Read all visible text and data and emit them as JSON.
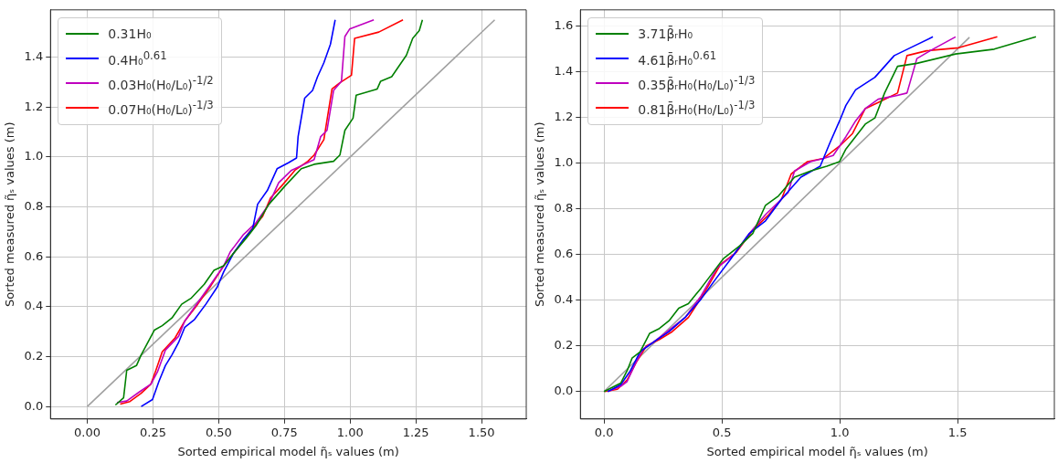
{
  "chart_data": [
    {
      "type": "line",
      "xlabel": "Sorted empirical model η̃ₛ values (m)",
      "ylabel": "Sorted measured η̃ₛ values (m)",
      "xlim": [
        -0.14,
        1.67
      ],
      "ylim": [
        -0.05,
        1.59
      ],
      "xticks": [
        {
          "value": 0,
          "label": "0.00"
        },
        {
          "value": 0.25,
          "label": "0.25"
        },
        {
          "value": 0.5,
          "label": "0.50"
        },
        {
          "value": 0.75,
          "label": "0.75"
        },
        {
          "value": 1,
          "label": "1.00"
        },
        {
          "value": 1.25,
          "label": "1.25"
        },
        {
          "value": 1.5,
          "label": "1.50"
        }
      ],
      "yticks": [
        {
          "value": 0,
          "label": "0.0"
        },
        {
          "value": 0.2,
          "label": "0.2"
        },
        {
          "value": 0.4,
          "label": "0.4"
        },
        {
          "value": 0.6,
          "label": "0.6"
        },
        {
          "value": 0.8,
          "label": "0.8"
        },
        {
          "value": 1,
          "label": "1.0"
        },
        {
          "value": 1.2,
          "label": "1.2"
        },
        {
          "value": 1.4,
          "label": "1.4"
        }
      ],
      "grid": true,
      "legend": "top left",
      "marker": "none",
      "line_style": "solid",
      "series": [
        {
          "name": "0.31H₀",
          "color": "#008000",
          "x": [
            0.107,
            0.138,
            0.15,
            0.187,
            0.205,
            0.224,
            0.255,
            0.285,
            0.322,
            0.359,
            0.396,
            0.445,
            0.482,
            0.519,
            0.556,
            0.605,
            0.642,
            0.691,
            0.753,
            0.814,
            0.863,
            0.937,
            0.961,
            0.98,
            1.011,
            1.023,
            1.103,
            1.116,
            1.158,
            1.214,
            1.238,
            1.263,
            1.275
          ],
          "values": [
            0.006,
            0.035,
            0.145,
            0.164,
            0.207,
            0.244,
            0.306,
            0.324,
            0.355,
            0.41,
            0.435,
            0.49,
            0.546,
            0.564,
            0.614,
            0.675,
            0.725,
            0.811,
            0.885,
            0.953,
            0.971,
            0.983,
            1.008,
            1.107,
            1.156,
            1.248,
            1.273,
            1.304,
            1.322,
            1.408,
            1.476,
            1.507,
            1.55
          ]
        },
        {
          "name": "0.4H₀$^{0.61}$",
          "color": "#0000ff",
          "x": [
            0.205,
            0.248,
            0.273,
            0.297,
            0.322,
            0.347,
            0.371,
            0.408,
            0.451,
            0.494,
            0.519,
            0.556,
            0.593,
            0.629,
            0.648,
            0.685,
            0.722,
            0.765,
            0.796,
            0.802,
            0.827,
            0.857,
            0.876,
            0.9,
            0.925,
            0.943
          ],
          "values": [
            0,
            0.028,
            0.102,
            0.164,
            0.207,
            0.256,
            0.318,
            0.349,
            0.41,
            0.478,
            0.54,
            0.614,
            0.669,
            0.712,
            0.811,
            0.866,
            0.953,
            0.977,
            0.996,
            1.082,
            1.236,
            1.267,
            1.322,
            1.378,
            1.452,
            1.55
          ]
        },
        {
          "name": "0.03H₀(H₀/L₀)$^{-1/2}$",
          "color": "#bf00bf",
          "x": [
            0.113,
            0.15,
            0.199,
            0.242,
            0.267,
            0.297,
            0.347,
            0.371,
            0.42,
            0.47,
            0.519,
            0.544,
            0.593,
            0.642,
            0.691,
            0.728,
            0.777,
            0.826,
            0.863,
            0.888,
            0.912,
            0.937,
            0.967,
            0.98,
            0.998,
            1.09
          ],
          "values": [
            0.016,
            0.022,
            0.059,
            0.09,
            0.139,
            0.226,
            0.281,
            0.343,
            0.416,
            0.49,
            0.564,
            0.62,
            0.688,
            0.737,
            0.811,
            0.897,
            0.947,
            0.971,
            0.99,
            1.082,
            1.107,
            1.267,
            1.304,
            1.483,
            1.513,
            1.55
          ]
        },
        {
          "name": "0.07H₀(H₀/L₀)$^{-1/3}$",
          "color": "#ff0000",
          "x": [
            0.125,
            0.162,
            0.205,
            0.242,
            0.261,
            0.285,
            0.334,
            0.371,
            0.42,
            0.47,
            0.519,
            0.556,
            0.617,
            0.667,
            0.697,
            0.74,
            0.79,
            0.839,
            0.863,
            0.9,
            0.931,
            0.961,
            1.005,
            1.017,
            1.109,
            1.201
          ],
          "values": [
            0.01,
            0.02,
            0.053,
            0.09,
            0.145,
            0.219,
            0.275,
            0.343,
            0.41,
            0.484,
            0.564,
            0.614,
            0.7,
            0.762,
            0.836,
            0.885,
            0.947,
            0.983,
            1.008,
            1.07,
            1.273,
            1.298,
            1.328,
            1.476,
            1.501,
            1.55
          ]
        },
        {
          "color": "#a0a0a0",
          "x": [
            0,
            1.55
          ],
          "values": [
            0,
            1.55
          ]
        }
      ]
    },
    {
      "type": "line",
      "xlabel": "Sorted empirical model η̃ₛ values (m)",
      "ylabel": "Sorted measured η̃ₛ values (m)",
      "xlim": [
        -0.1,
        1.91
      ],
      "ylim": [
        -0.12,
        1.67
      ],
      "xticks": [
        {
          "value": 0,
          "label": "0.0"
        },
        {
          "value": 0.5,
          "label": "0.5"
        },
        {
          "value": 1,
          "label": "1.0"
        },
        {
          "value": 1.5,
          "label": "1.5"
        }
      ],
      "yticks": [
        {
          "value": 0,
          "label": "0.0"
        },
        {
          "value": 0.2,
          "label": "0.2"
        },
        {
          "value": 0.4,
          "label": "0.4"
        },
        {
          "value": 0.6,
          "label": "0.6"
        },
        {
          "value": 0.8,
          "label": "0.8"
        },
        {
          "value": 1,
          "label": "1.0"
        },
        {
          "value": 1.2,
          "label": "1.2"
        },
        {
          "value": 1.4,
          "label": "1.4"
        },
        {
          "value": 1.6,
          "label": "1.6"
        }
      ],
      "grid": true,
      "legend": "top left",
      "marker": "none",
      "line_style": "solid",
      "series": [
        {
          "name": "3.71β̄ᵣH₀",
          "color": "#008000",
          "x": [
            0,
            0.071,
            0.098,
            0.119,
            0.153,
            0.194,
            0.235,
            0.276,
            0.317,
            0.358,
            0.412,
            0.467,
            0.508,
            0.576,
            0.631,
            0.685,
            0.74,
            0.808,
            0.876,
            0.945,
            0.999,
            1.026,
            1.108,
            1.149,
            1.19,
            1.245,
            1.327,
            1.491,
            1.655,
            1.832
          ],
          "values": [
            0,
            0.037,
            0.091,
            0.146,
            0.173,
            0.255,
            0.276,
            0.31,
            0.365,
            0.385,
            0.453,
            0.528,
            0.583,
            0.638,
            0.692,
            0.815,
            0.856,
            0.938,
            0.965,
            0.986,
            1.006,
            1.061,
            1.17,
            1.197,
            1.306,
            1.423,
            1.436,
            1.477,
            1.498,
            1.552
          ]
        },
        {
          "name": "4.61β̄ᵣH₀$^{0.61}$",
          "color": "#0000ff",
          "x": [
            0.016,
            0.071,
            0.112,
            0.153,
            0.207,
            0.276,
            0.344,
            0.412,
            0.48,
            0.535,
            0.617,
            0.685,
            0.753,
            0.835,
            0.917,
            0.958,
            0.999,
            1.026,
            1.067,
            1.149,
            1.231,
            1.299,
            1.395
          ],
          "values": [
            0,
            0.03,
            0.091,
            0.173,
            0.214,
            0.262,
            0.324,
            0.405,
            0.501,
            0.576,
            0.692,
            0.747,
            0.842,
            0.938,
            0.986,
            1.088,
            1.184,
            1.252,
            1.32,
            1.375,
            1.47,
            1.504,
            1.552
          ]
        },
        {
          "name": "0.35β̄ᵣH₀(H₀/L₀)$^{-1/3}$",
          "color": "#bf00bf",
          "x": [
            0.016,
            0.071,
            0.098,
            0.132,
            0.167,
            0.207,
            0.276,
            0.344,
            0.412,
            0.48,
            0.549,
            0.617,
            0.685,
            0.781,
            0.808,
            0.876,
            0.931,
            0.972,
            1.026,
            1.067,
            1.108,
            1.163,
            1.231,
            1.285,
            1.327,
            1.395,
            1.491
          ],
          "values": [
            0,
            0.023,
            0.044,
            0.119,
            0.187,
            0.214,
            0.269,
            0.324,
            0.419,
            0.542,
            0.597,
            0.692,
            0.774,
            0.87,
            0.965,
            1.006,
            1.02,
            1.033,
            1.115,
            1.184,
            1.238,
            1.279,
            1.293,
            1.306,
            1.457,
            1.498,
            1.552
          ]
        },
        {
          "name": "0.81β̄ᵣH₀(H₀/L₀)$^{-1/3}$",
          "color": "#ff0000",
          "x": [
            0.003,
            0.057,
            0.098,
            0.139,
            0.18,
            0.235,
            0.289,
            0.358,
            0.426,
            0.494,
            0.562,
            0.631,
            0.699,
            0.753,
            0.794,
            0.863,
            0.931,
            0.999,
            1.054,
            1.108,
            1.163,
            1.245,
            1.285,
            1.368,
            1.504,
            1.668
          ],
          "values": [
            0,
            0.01,
            0.051,
            0.132,
            0.2,
            0.228,
            0.262,
            0.324,
            0.433,
            0.556,
            0.61,
            0.706,
            0.774,
            0.842,
            0.952,
            1.006,
            1.02,
            1.074,
            1.129,
            1.238,
            1.265,
            1.306,
            1.47,
            1.491,
            1.504,
            1.552
          ]
        },
        {
          "color": "#a0a0a0",
          "x": [
            0,
            1.55
          ],
          "values": [
            0,
            1.55
          ]
        }
      ]
    }
  ]
}
